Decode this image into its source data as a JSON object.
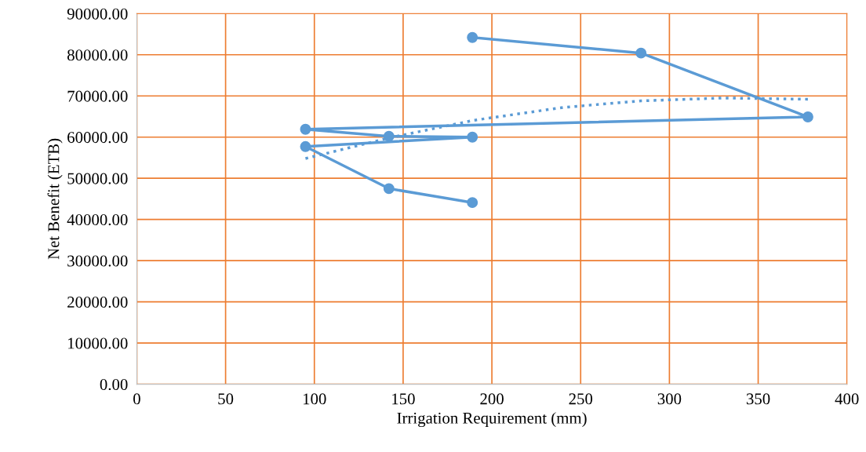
{
  "chart_data": {
    "type": "line",
    "xlabel": "Irrigation Requirement (mm)",
    "ylabel": "Net Benefit (ETB)",
    "xlim": [
      0,
      400
    ],
    "xticks": [
      0,
      50,
      100,
      150,
      200,
      250,
      300,
      350,
      400
    ],
    "ylim": [
      0,
      90000
    ],
    "yticks": [
      {
        "value": 0,
        "label": "0.00"
      },
      {
        "value": 10000,
        "label": "10000.00"
      },
      {
        "value": 20000,
        "label": "20000.00"
      },
      {
        "value": 30000,
        "label": "30000.00"
      },
      {
        "value": 40000,
        "label": "40000.00"
      },
      {
        "value": 50000,
        "label": "50000.00"
      },
      {
        "value": 60000,
        "label": "60000.00"
      },
      {
        "value": 70000,
        "label": "70000.00"
      },
      {
        "value": 80000,
        "label": "80000.00"
      },
      {
        "value": 90000,
        "label": "90000.00"
      }
    ],
    "grid": true,
    "series": [
      {
        "color": "#5b9bd5",
        "marker": "circle",
        "line_style": "solid",
        "x": [
          189,
          284,
          378,
          95,
          142,
          189,
          95,
          142,
          189
        ],
        "values": [
          84200,
          80400,
          64900,
          61900,
          60200,
          60000,
          57700,
          47500,
          44100
        ]
      },
      {
        "color": "#5b9bd5",
        "marker": "none",
        "line_style": "dotted",
        "x": [
          95,
          142,
          190,
          240,
          284,
          330,
          378
        ],
        "values": [
          54800,
          59800,
          64100,
          67200,
          68800,
          69500,
          69200
        ]
      }
    ]
  }
}
